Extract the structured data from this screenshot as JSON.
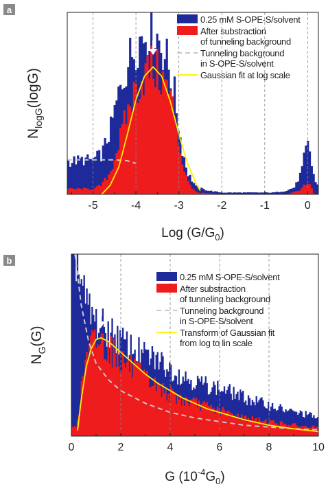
{
  "colors": {
    "bg_series": "#1f2a9a",
    "sub_series": "#ee1c1c",
    "tunnel_line": "#c8c8c8",
    "fit_line": "#ffee00",
    "grid": "#888888"
  },
  "chart_data": [
    {
      "type": "bar",
      "panel_label": "a",
      "xlabel_main": "Log (G/G",
      "xlabel_sub": "0",
      "xlabel_close": ")",
      "ylabel_main": "N",
      "ylabel_sub": "logG",
      "ylabel_tail": "(logG)",
      "xlim": [
        -5.6,
        0.25
      ],
      "ylim": [
        0,
        1
      ],
      "yticks_shown": false,
      "grid": "vertical-dashed",
      "x_ticks": [
        -5,
        -4,
        -3,
        -2,
        -1,
        0
      ],
      "x_tick_labels": [
        "-5",
        "-4",
        "-3",
        "-2",
        "-1",
        "0"
      ],
      "legend": {
        "placement": "top-right",
        "entries": [
          {
            "kind": "box",
            "color_key": "bg_series",
            "lines": [
              "0.25 mM S-OPE-S/solvent"
            ]
          },
          {
            "kind": "box",
            "color_key": "sub_series",
            "lines": [
              "After substraction",
              "of tunneling background"
            ]
          },
          {
            "kind": "dash",
            "color_key": "tunnel_line",
            "lines": [
              "Tunneling background",
              "in S-OPE-S/solvent"
            ]
          },
          {
            "kind": "line",
            "color_key": "fit_line",
            "lines": [
              "Gaussian fit at log scale"
            ]
          }
        ]
      },
      "series": [
        {
          "name": "0.25 mM S-OPE-S/solvent",
          "kind": "histogram",
          "points": [
            [
              -5.6,
              0.18
            ],
            [
              -5.2,
              0.19
            ],
            [
              -5.0,
              0.19
            ],
            [
              -4.8,
              0.22
            ],
            [
              -4.6,
              0.35
            ],
            [
              -4.4,
              0.55
            ],
            [
              -4.2,
              0.72
            ],
            [
              -4.0,
              0.83
            ],
            [
              -3.8,
              0.88
            ],
            [
              -3.65,
              0.94
            ],
            [
              -3.5,
              0.87
            ],
            [
              -3.3,
              0.76
            ],
            [
              -3.1,
              0.55
            ],
            [
              -2.95,
              0.28
            ],
            [
              -2.8,
              0.12
            ],
            [
              -2.6,
              0.04
            ],
            [
              -2.3,
              0.02
            ],
            [
              -2.0,
              0.01
            ],
            [
              -1.6,
              0.01
            ],
            [
              -1.2,
              0.01
            ],
            [
              -0.8,
              0.01
            ],
            [
              -0.5,
              0.02
            ],
            [
              -0.3,
              0.04
            ],
            [
              -0.15,
              0.12
            ],
            [
              -0.05,
              0.24
            ],
            [
              0.02,
              0.27
            ],
            [
              0.1,
              0.15
            ],
            [
              0.2,
              0.05
            ]
          ]
        },
        {
          "name": "After substraction of tunneling background",
          "kind": "histogram",
          "points": [
            [
              -5.6,
              0.03
            ],
            [
              -5.0,
              0.03
            ],
            [
              -4.8,
              0.05
            ],
            [
              -4.6,
              0.12
            ],
            [
              -4.4,
              0.28
            ],
            [
              -4.2,
              0.45
            ],
            [
              -4.0,
              0.58
            ],
            [
              -3.8,
              0.66
            ],
            [
              -3.65,
              0.7
            ],
            [
              -3.5,
              0.67
            ],
            [
              -3.3,
              0.6
            ],
            [
              -3.1,
              0.45
            ],
            [
              -2.95,
              0.2
            ],
            [
              -2.8,
              0.07
            ],
            [
              -2.6,
              0.01
            ],
            [
              -2.0,
              0.0
            ],
            [
              -0.5,
              0.0
            ],
            [
              -0.2,
              0.02
            ],
            [
              -0.05,
              0.06
            ],
            [
              0.05,
              0.05
            ],
            [
              0.15,
              0.0
            ]
          ]
        },
        {
          "name": "Tunneling background in S-OPE-S/solvent",
          "kind": "line",
          "style": "dashed",
          "points": [
            [
              -5.6,
              0.19
            ],
            [
              -5.0,
              0.19
            ],
            [
              -4.5,
              0.19
            ],
            [
              -4.2,
              0.185
            ],
            [
              -4.0,
              0.17
            ]
          ]
        },
        {
          "name": "Gaussian fit at log scale",
          "kind": "line",
          "points": [
            [
              -4.8,
              0.0
            ],
            [
              -4.6,
              0.05
            ],
            [
              -4.4,
              0.15
            ],
            [
              -4.2,
              0.33
            ],
            [
              -4.0,
              0.52
            ],
            [
              -3.8,
              0.65
            ],
            [
              -3.6,
              0.7
            ],
            [
              -3.4,
              0.65
            ],
            [
              -3.2,
              0.51
            ],
            [
              -3.0,
              0.33
            ],
            [
              -2.8,
              0.17
            ],
            [
              -2.6,
              0.06
            ],
            [
              -2.5,
              0.02
            ]
          ]
        }
      ],
      "annotation": {
        "kind": "down-arrow",
        "x": -3.6,
        "y": 0.8
      }
    },
    {
      "type": "bar",
      "panel_label": "b",
      "xlabel_main": "G (10",
      "xlabel_sup": "-4",
      "xlabel_mid": "G",
      "xlabel_sub": "0",
      "xlabel_close": ")",
      "ylabel_main": "N",
      "ylabel_sub": "G",
      "ylabel_tail": "(G)",
      "xlim": [
        0,
        10
      ],
      "ylim": [
        0,
        1
      ],
      "yticks_shown": false,
      "grid": "vertical-dashed",
      "x_ticks": [
        0,
        2,
        4,
        6,
        8,
        10
      ],
      "x_tick_labels": [
        "0",
        "2",
        "4",
        "6",
        "8",
        "10"
      ],
      "legend": {
        "placement": "top-right",
        "entries": [
          {
            "kind": "box",
            "color_key": "bg_series",
            "lines": [
              "0.25 mM S-OPE-S/solvent"
            ]
          },
          {
            "kind": "box",
            "color_key": "sub_series",
            "lines": [
              "After substraction",
              "of tunneling background"
            ]
          },
          {
            "kind": "dash",
            "color_key": "tunnel_line",
            "lines": [
              "Tunneling background",
              "in S-OPE-S/solvent"
            ]
          },
          {
            "kind": "line",
            "color_key": "fit_line",
            "lines": [
              "Transform of Gaussian fit",
              "from log to lin scale"
            ]
          }
        ]
      },
      "series": [
        {
          "name": "0.25 mM S-OPE-S/solvent",
          "kind": "histogram",
          "points": [
            [
              0.2,
              1.0
            ],
            [
              0.4,
              0.83
            ],
            [
              0.6,
              0.72
            ],
            [
              0.8,
              0.66
            ],
            [
              1.0,
              0.63
            ],
            [
              1.2,
              0.6
            ],
            [
              1.5,
              0.58
            ],
            [
              2.0,
              0.52
            ],
            [
              2.5,
              0.48
            ],
            [
              3.0,
              0.44
            ],
            [
              3.5,
              0.42
            ],
            [
              4.0,
              0.37
            ],
            [
              4.5,
              0.33
            ],
            [
              5.0,
              0.3
            ],
            [
              5.5,
              0.28
            ],
            [
              6.0,
              0.26
            ],
            [
              6.5,
              0.24
            ],
            [
              7.0,
              0.21
            ],
            [
              7.5,
              0.19
            ],
            [
              8.0,
              0.17
            ],
            [
              8.5,
              0.15
            ],
            [
              9.0,
              0.13
            ],
            [
              9.5,
              0.12
            ],
            [
              10.0,
              0.1
            ]
          ]
        },
        {
          "name": "After substraction of tunneling background",
          "kind": "histogram",
          "points": [
            [
              0.2,
              0.05
            ],
            [
              0.4,
              0.25
            ],
            [
              0.6,
              0.42
            ],
            [
              0.8,
              0.5
            ],
            [
              1.0,
              0.53
            ],
            [
              1.2,
              0.52
            ],
            [
              1.5,
              0.49
            ],
            [
              2.0,
              0.42
            ],
            [
              2.5,
              0.37
            ],
            [
              3.0,
              0.31
            ],
            [
              3.5,
              0.27
            ],
            [
              4.0,
              0.23
            ],
            [
              4.5,
              0.2
            ],
            [
              5.0,
              0.18
            ],
            [
              5.5,
              0.16
            ],
            [
              6.0,
              0.14
            ],
            [
              6.5,
              0.12
            ],
            [
              7.0,
              0.1
            ],
            [
              7.5,
              0.09
            ],
            [
              8.0,
              0.08
            ],
            [
              8.5,
              0.07
            ],
            [
              9.0,
              0.06
            ],
            [
              9.5,
              0.05
            ],
            [
              10.0,
              0.05
            ]
          ]
        },
        {
          "name": "Tunneling background in S-OPE-S/solvent",
          "kind": "line",
          "style": "dashed",
          "points": [
            [
              0.15,
              1.0
            ],
            [
              0.4,
              0.72
            ],
            [
              0.7,
              0.52
            ],
            [
              1.0,
              0.4
            ],
            [
              1.5,
              0.31
            ],
            [
              2.0,
              0.25
            ],
            [
              3.0,
              0.18
            ],
            [
              4.0,
              0.13
            ],
            [
              5.0,
              0.1
            ],
            [
              6.0,
              0.08
            ],
            [
              7.0,
              0.06
            ],
            [
              8.0,
              0.05
            ],
            [
              9.0,
              0.04
            ],
            [
              10.0,
              0.035
            ]
          ]
        },
        {
          "name": "Transform of Gaussian fit from log to lin scale",
          "kind": "line",
          "points": [
            [
              0.25,
              0.03
            ],
            [
              0.4,
              0.2
            ],
            [
              0.6,
              0.38
            ],
            [
              0.8,
              0.48
            ],
            [
              1.0,
              0.53
            ],
            [
              1.2,
              0.54
            ],
            [
              1.5,
              0.52
            ],
            [
              2.0,
              0.46
            ],
            [
              2.5,
              0.4
            ],
            [
              3.0,
              0.34
            ],
            [
              3.5,
              0.29
            ],
            [
              4.0,
              0.25
            ],
            [
              4.5,
              0.21
            ],
            [
              5.0,
              0.18
            ],
            [
              5.5,
              0.15
            ],
            [
              6.0,
              0.13
            ],
            [
              6.5,
              0.11
            ],
            [
              7.0,
              0.09
            ],
            [
              7.5,
              0.075
            ],
            [
              8.0,
              0.06
            ],
            [
              8.5,
              0.05
            ],
            [
              9.0,
              0.04
            ],
            [
              10.0,
              0.025
            ]
          ]
        }
      ],
      "annotation": {
        "kind": "down-arrow",
        "x": 1.2,
        "y": 0.63
      }
    }
  ]
}
